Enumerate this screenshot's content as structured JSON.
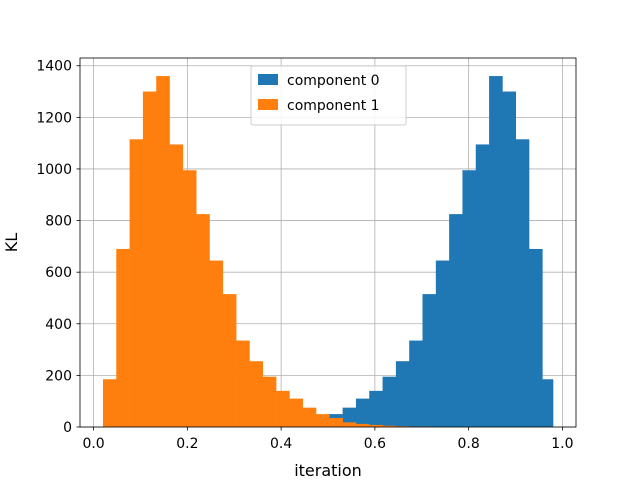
{
  "chart_data": {
    "type": "bar",
    "xlabel": "iteration",
    "ylabel": "KL",
    "xlim": [
      -0.029,
      1.029
    ],
    "ylim": [
      0,
      1430
    ],
    "xticks": [
      0.0,
      0.2,
      0.4,
      0.6,
      0.8,
      1.0
    ],
    "yticks": [
      0,
      200,
      400,
      600,
      800,
      1000,
      1200,
      1400
    ],
    "grid": true,
    "legend_position": "upper center",
    "bin_edges": [
      0.02,
      0.0484,
      0.0768,
      0.1052,
      0.1336,
      0.162,
      0.1904,
      0.2188,
      0.2472,
      0.2756,
      0.304,
      0.3324,
      0.3608,
      0.3892,
      0.4176,
      0.446,
      0.4744,
      0.5028,
      0.5312,
      0.5596,
      0.588,
      0.6164,
      0.6448,
      0.6732,
      0.7016,
      0.73,
      0.7584,
      0.7868,
      0.8152,
      0.8436,
      0.872,
      0.9004,
      0.9288,
      0.9572,
      0.98
    ],
    "series": [
      {
        "name": "component 0",
        "color": "#1f77b4",
        "values": [
          0,
          0,
          0,
          0,
          0,
          0,
          0,
          0,
          0,
          0,
          0,
          0,
          0,
          0,
          0,
          0,
          0,
          50,
          75,
          110,
          140,
          195,
          255,
          335,
          515,
          645,
          825,
          995,
          1095,
          1360,
          1300,
          1115,
          690,
          185
        ]
      },
      {
        "name": "component 1",
        "color": "#ff7f0e",
        "values": [
          185,
          690,
          1115,
          1300,
          1360,
          1095,
          995,
          825,
          645,
          515,
          335,
          255,
          195,
          140,
          110,
          75,
          50,
          35,
          18,
          12,
          8,
          5,
          3,
          2,
          1,
          0,
          0,
          0,
          0,
          0,
          0,
          0,
          0,
          0
        ]
      }
    ]
  }
}
